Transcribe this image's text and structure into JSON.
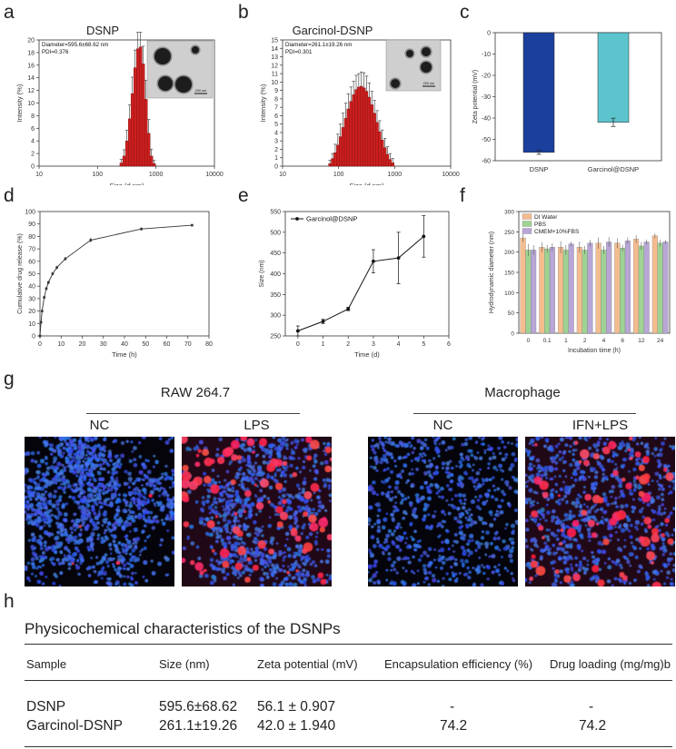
{
  "panel_letters": {
    "a": "a",
    "b": "b",
    "c": "c",
    "d": "d",
    "e": "e",
    "f": "f",
    "g": "g",
    "h": "h"
  },
  "chart_data": [
    {
      "id": "a",
      "type": "bar",
      "title": "DSNP",
      "xlabel": "Size (d.nm)",
      "ylabel": "Intensity (%)",
      "xscale": "log",
      "xlim": [
        10,
        10000
      ],
      "xticks": [
        "10",
        "100",
        "1000",
        "10000"
      ],
      "ylim": [
        0,
        20
      ],
      "yticks": [
        "0",
        "2",
        "4",
        "6",
        "8",
        "10",
        "12",
        "14",
        "16",
        "18",
        "20"
      ],
      "annotation": [
        "Diameter=595.6±68.62 nm",
        "PDI=0.376"
      ],
      "inset": "TEM image",
      "inset_scale": "200 nm",
      "bar_color": "#cc1f1f",
      "bins": [
        {
          "x": 255,
          "y": 0.5,
          "err": 0.6
        },
        {
          "x": 285,
          "y": 1.6,
          "err": 1.0
        },
        {
          "x": 318,
          "y": 4.0,
          "err": 1.7
        },
        {
          "x": 355,
          "y": 7.5,
          "err": 2.2
        },
        {
          "x": 395,
          "y": 11.5,
          "err": 2.6
        },
        {
          "x": 440,
          "y": 15.6,
          "err": 2.8
        },
        {
          "x": 490,
          "y": 18.6,
          "err": 2.6
        },
        {
          "x": 545,
          "y": 18.9,
          "err": 2.3
        },
        {
          "x": 605,
          "y": 16.2,
          "err": 2.8
        },
        {
          "x": 675,
          "y": 10.6,
          "err": 3.0
        },
        {
          "x": 750,
          "y": 5.2,
          "err": 2.2
        },
        {
          "x": 835,
          "y": 1.6,
          "err": 1.1
        },
        {
          "x": 930,
          "y": 0.4,
          "err": 0.5
        }
      ]
    },
    {
      "id": "b",
      "type": "bar",
      "title": "Garcinol-DSNP",
      "xlabel": "Size (d.nm)",
      "ylabel": "Intensity (%)",
      "xscale": "log",
      "xlim": [
        10,
        10000
      ],
      "xticks": [
        "10",
        "100",
        "1000",
        "10000"
      ],
      "ylim": [
        0,
        15
      ],
      "yticks": [
        "0",
        "1",
        "2",
        "3",
        "4",
        "5",
        "6",
        "7",
        "8",
        "9",
        "10",
        "11",
        "12",
        "13",
        "14",
        "15"
      ],
      "annotation": [
        "Diameter=261.1±19.26 nm",
        "PDI=0.301"
      ],
      "inset": "TEM image",
      "inset_scale": "200 nm",
      "bar_color": "#cc1f1f",
      "bins": [
        {
          "x": 70,
          "y": 0.3,
          "err": 0.4
        },
        {
          "x": 78,
          "y": 0.9,
          "err": 0.6
        },
        {
          "x": 87,
          "y": 1.6,
          "err": 1.0
        },
        {
          "x": 97,
          "y": 2.5,
          "err": 1.3
        },
        {
          "x": 108,
          "y": 3.5,
          "err": 1.5
        },
        {
          "x": 120,
          "y": 4.6,
          "err": 1.7
        },
        {
          "x": 134,
          "y": 5.7,
          "err": 1.8
        },
        {
          "x": 149,
          "y": 6.8,
          "err": 1.8
        },
        {
          "x": 166,
          "y": 7.7,
          "err": 1.7
        },
        {
          "x": 185,
          "y": 8.5,
          "err": 1.6
        },
        {
          "x": 206,
          "y": 9.1,
          "err": 1.7
        },
        {
          "x": 229,
          "y": 9.4,
          "err": 1.6
        },
        {
          "x": 255,
          "y": 9.5,
          "err": 1.7
        },
        {
          "x": 284,
          "y": 9.3,
          "err": 1.8
        },
        {
          "x": 316,
          "y": 8.9,
          "err": 1.8
        },
        {
          "x": 352,
          "y": 8.2,
          "err": 1.7
        },
        {
          "x": 392,
          "y": 7.3,
          "err": 1.6
        },
        {
          "x": 437,
          "y": 6.3,
          "err": 1.5
        },
        {
          "x": 486,
          "y": 5.2,
          "err": 1.4
        },
        {
          "x": 541,
          "y": 4.1,
          "err": 1.3
        },
        {
          "x": 602,
          "y": 3.1,
          "err": 1.2
        },
        {
          "x": 670,
          "y": 2.2,
          "err": 1.1
        },
        {
          "x": 746,
          "y": 1.4,
          "err": 0.9
        },
        {
          "x": 830,
          "y": 0.8,
          "err": 0.7
        },
        {
          "x": 925,
          "y": 0.4,
          "err": 0.5
        }
      ]
    },
    {
      "id": "c",
      "type": "bar",
      "title": "",
      "ylabel": "Zeta potential (mV)",
      "ylim": [
        -60,
        0
      ],
      "yticks": [
        "0",
        "-10",
        "-20",
        "-30",
        "-40",
        "-50",
        "-60"
      ],
      "categories": [
        "DSNP",
        "Garcinol@DSNP"
      ],
      "values": [
        -56.1,
        -42.0
      ],
      "errors": [
        0.907,
        1.94
      ],
      "colors": [
        "#1b3f9c",
        "#5cc4cc"
      ]
    },
    {
      "id": "d",
      "type": "line",
      "xlabel": "Time (h)",
      "ylabel": "Cumulative drug release (%)",
      "xlim": [
        0,
        80
      ],
      "xticks": [
        "0",
        "10",
        "20",
        "30",
        "40",
        "50",
        "60",
        "70",
        "80"
      ],
      "ylim": [
        0,
        100
      ],
      "yticks": [
        "0",
        "10",
        "20",
        "30",
        "40",
        "50",
        "60",
        "70",
        "80",
        "90",
        "100"
      ],
      "points": [
        {
          "x": 0,
          "y": 0,
          "err": 0.5
        },
        {
          "x": 0.5,
          "y": 11,
          "err": 1
        },
        {
          "x": 1,
          "y": 20,
          "err": 1
        },
        {
          "x": 2,
          "y": 31,
          "err": 1.2
        },
        {
          "x": 3,
          "y": 38,
          "err": 1.2
        },
        {
          "x": 4,
          "y": 43,
          "err": 1.3
        },
        {
          "x": 6,
          "y": 50,
          "err": 1.3
        },
        {
          "x": 8,
          "y": 55,
          "err": 1.4
        },
        {
          "x": 12,
          "y": 62,
          "err": 1.5
        },
        {
          "x": 24,
          "y": 77,
          "err": 1.8
        },
        {
          "x": 48,
          "y": 86,
          "err": 1.2
        },
        {
          "x": 72,
          "y": 89,
          "err": 0.8
        }
      ]
    },
    {
      "id": "e",
      "type": "line",
      "xlabel": "Time (d)",
      "ylabel": "Size (nm)",
      "xlim": [
        -0.5,
        6
      ],
      "xticks": [
        "0",
        "1",
        "2",
        "3",
        "4",
        "5",
        "6"
      ],
      "ylim": [
        250,
        550
      ],
      "yticks": [
        "250",
        "300",
        "350",
        "400",
        "450",
        "500",
        "550"
      ],
      "series_name": "Garcinol@DSNP",
      "points": [
        {
          "x": 0,
          "y": 262,
          "err": 12
        },
        {
          "x": 1,
          "y": 285,
          "err": 5
        },
        {
          "x": 2,
          "y": 315,
          "err": 4
        },
        {
          "x": 3,
          "y": 430,
          "err": 28
        },
        {
          "x": 4,
          "y": 438,
          "err": 62
        },
        {
          "x": 5,
          "y": 490,
          "err": 50
        }
      ]
    },
    {
      "id": "f",
      "type": "bar",
      "xlabel": "Incubation time (h)",
      "ylabel": "Hydrodynamic diameter (nm)",
      "ylim": [
        0,
        300
      ],
      "yticks": [
        "0",
        "50",
        "100",
        "150",
        "200",
        "250",
        "300"
      ],
      "categories": [
        "0",
        "0.1",
        "1",
        "2",
        "4",
        "6",
        "12",
        "24"
      ],
      "series": [
        {
          "name": "DI Water",
          "color": "#f4bd8f",
          "values": [
            235,
            212,
            212,
            212,
            222,
            222,
            232,
            240
          ],
          "errors": [
            10,
            12,
            15,
            14,
            14,
            12,
            10,
            6
          ]
        },
        {
          "name": "PBS",
          "color": "#9fd393",
          "values": [
            205,
            208,
            205,
            205,
            205,
            210,
            215,
            222
          ],
          "errors": [
            15,
            10,
            12,
            10,
            10,
            8,
            10,
            8
          ]
        },
        {
          "name": "CMEM+10%FBS",
          "color": "#b7a6d6",
          "values": [
            205,
            212,
            220,
            222,
            225,
            228,
            225,
            225
          ],
          "errors": [
            12,
            10,
            6,
            8,
            12,
            8,
            6,
            5
          ]
        }
      ]
    }
  ],
  "images": {
    "left_group_title": "RAW 264.7",
    "right_group_title": "Macrophage",
    "labels": [
      "NC",
      "LPS",
      "NC",
      "IFN+LPS"
    ]
  },
  "table": {
    "title": "Physicochemical characteristics of the DSNPs",
    "headers": [
      "Sample",
      "Size (nm)",
      "Zeta potential (mV)",
      "Encapsulation efficiency (%)",
      "Drug loading (mg/mg)b"
    ],
    "rows": [
      [
        "DSNP",
        "595.6±68.62",
        "56.1 ± 0.907",
        "-",
        "-"
      ],
      [
        "Garcinol-DSNP",
        "261.1±19.26",
        "42.0 ± 1.940",
        "74.2",
        "74.2"
      ]
    ]
  }
}
